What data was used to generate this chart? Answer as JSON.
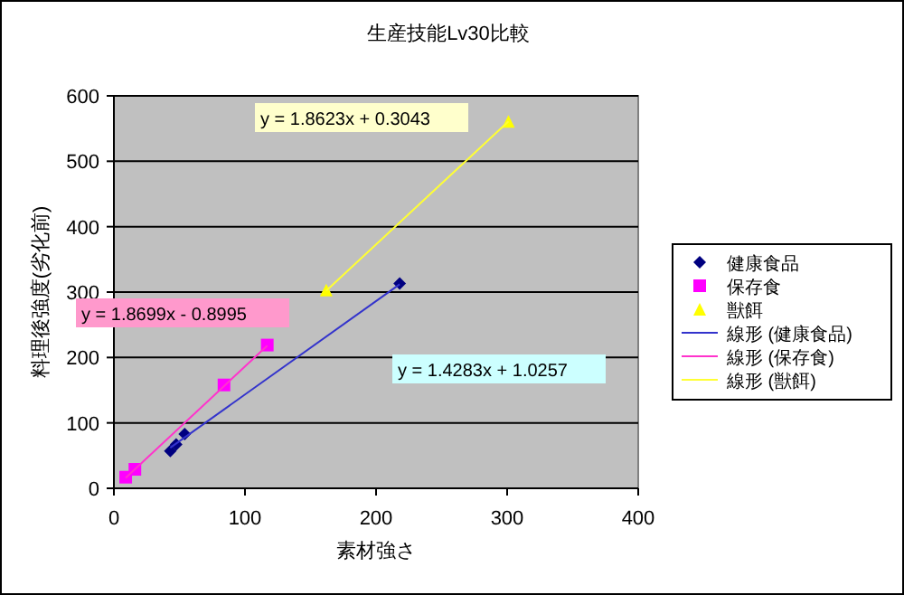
{
  "chart_data": {
    "type": "scatter",
    "title": "生産技能Lv30比較",
    "xlabel": "素材強さ",
    "ylabel": "料理後強度(劣化前)",
    "xlim": [
      0,
      400
    ],
    "ylim": [
      0,
      600
    ],
    "xticks": [
      0,
      100,
      200,
      300,
      400
    ],
    "yticks": [
      0,
      100,
      200,
      300,
      400,
      500,
      600
    ],
    "grid": "y",
    "legend": "right",
    "series": [
      {
        "name": "健康食品",
        "color": "#000080",
        "marker": "diamond",
        "x": [
          43,
          47.5,
          54,
          218
        ],
        "values": [
          57,
          67,
          83,
          313
        ]
      },
      {
        "name": "保存食",
        "color": "#ff00ff",
        "marker": "square",
        "x": [
          9,
          16,
          84,
          117
        ],
        "values": [
          17,
          29,
          158,
          219
        ]
      },
      {
        "name": "獣餌",
        "color": "#ffff00",
        "marker": "triangle",
        "x": [
          162,
          301
        ],
        "values": [
          303,
          561
        ]
      },
      {
        "name": "線形 (健康食品)",
        "type": "line",
        "color": "#3333cc",
        "marker": "none",
        "x": [
          43,
          218
        ],
        "values": [
          62,
          312
        ]
      },
      {
        "name": "線形 (保存食)",
        "type": "line",
        "color": "#ff33cc",
        "marker": "none",
        "x": [
          9,
          117
        ],
        "values": [
          16,
          218
        ]
      },
      {
        "name": "線形 (獣餌)",
        "type": "line",
        "color": "#ffff33",
        "marker": "none",
        "x": [
          162,
          301
        ],
        "values": [
          302,
          561
        ]
      }
    ],
    "annotations": [
      "y = 1.4283x + 1.0257",
      "y = 1.8699x - 0.8995",
      "y = 1.8623x + 0.3043"
    ]
  }
}
